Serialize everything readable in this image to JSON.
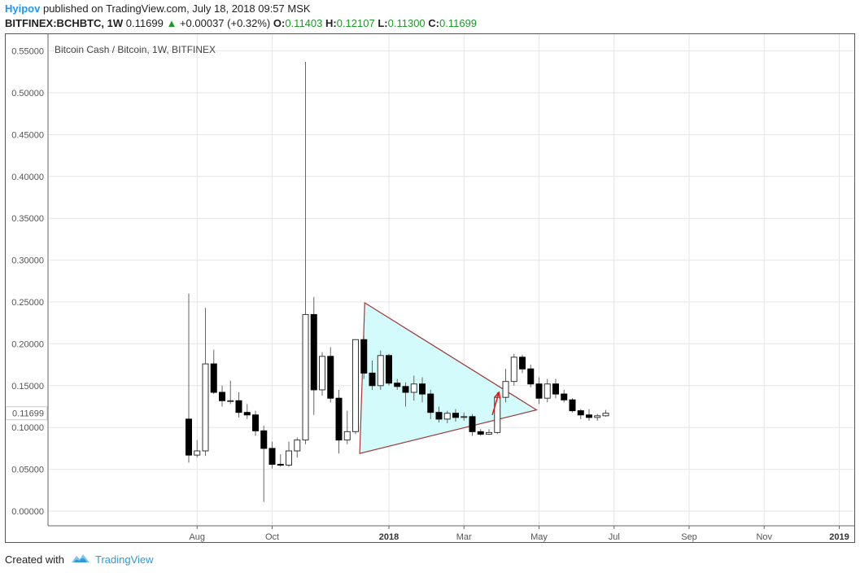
{
  "header": {
    "author": "Hyipov",
    "published_text": "published on TradingView.com, July 18, 2018 09:57 MSK",
    "symbol": "BITFINEX:BCHBTC, 1W",
    "last": "0.11699",
    "change": "+0.00037 (+0.32%)",
    "o_label": "O:",
    "o_val": "0.11403",
    "h_label": "H:",
    "h_val": "0.12107",
    "l_label": "L:",
    "l_val": "0.11300",
    "c_label": "C:",
    "c_val": "0.11699"
  },
  "chart_data": {
    "type": "candlestick",
    "title": "Bitcoin Cash / Bitcoin, 1W, BITFINEX",
    "ylim": [
      -0.02,
      0.56
    ],
    "yticks": [
      "0.55000",
      "0.50000",
      "0.45000",
      "0.40000",
      "0.35000",
      "0.30000",
      "0.25000",
      "0.20000",
      "0.15000",
      "0.10000",
      "0.05000",
      "0.00000"
    ],
    "ytick_values": [
      0.55,
      0.5,
      0.45,
      0.4,
      0.35,
      0.3,
      0.25,
      0.2,
      0.15,
      0.1,
      0.05,
      0.0
    ],
    "price_label": "0.11699",
    "price_value": 0.11699,
    "xticks": [
      {
        "label": "Aug",
        "bold": false,
        "week": 1
      },
      {
        "label": "Oct",
        "bold": false,
        "week": 10
      },
      {
        "label": "2018",
        "bold": true,
        "week": 24
      },
      {
        "label": "Mar",
        "bold": false,
        "week": 33
      },
      {
        "label": "May",
        "bold": false,
        "week": 42
      },
      {
        "label": "Jul",
        "bold": false,
        "week": 51
      },
      {
        "label": "Sep",
        "bold": false,
        "week": 60
      },
      {
        "label": "Nov",
        "bold": false,
        "week": 69
      },
      {
        "label": "2019",
        "bold": true,
        "week": 78
      }
    ],
    "candles": [
      {
        "o": 0.11,
        "h": 0.26,
        "l": 0.058,
        "c": 0.067
      },
      {
        "o": 0.067,
        "h": 0.085,
        "l": 0.064,
        "c": 0.072
      },
      {
        "o": 0.072,
        "h": 0.243,
        "l": 0.066,
        "c": 0.176
      },
      {
        "o": 0.176,
        "h": 0.193,
        "l": 0.14,
        "c": 0.142
      },
      {
        "o": 0.142,
        "h": 0.15,
        "l": 0.125,
        "c": 0.132
      },
      {
        "o": 0.132,
        "h": 0.156,
        "l": 0.128,
        "c": 0.132
      },
      {
        "o": 0.132,
        "h": 0.142,
        "l": 0.112,
        "c": 0.118
      },
      {
        "o": 0.118,
        "h": 0.128,
        "l": 0.11,
        "c": 0.115
      },
      {
        "o": 0.115,
        "h": 0.12,
        "l": 0.09,
        "c": 0.096
      },
      {
        "o": 0.096,
        "h": 0.102,
        "l": 0.011,
        "c": 0.075
      },
      {
        "o": 0.075,
        "h": 0.083,
        "l": 0.051,
        "c": 0.056
      },
      {
        "o": 0.056,
        "h": 0.068,
        "l": 0.053,
        "c": 0.055
      },
      {
        "o": 0.055,
        "h": 0.083,
        "l": 0.053,
        "c": 0.072
      },
      {
        "o": 0.072,
        "h": 0.088,
        "l": 0.064,
        "c": 0.085
      },
      {
        "o": 0.085,
        "h": 0.537,
        "l": 0.08,
        "c": 0.235
      },
      {
        "o": 0.235,
        "h": 0.256,
        "l": 0.115,
        "c": 0.145
      },
      {
        "o": 0.145,
        "h": 0.19,
        "l": 0.138,
        "c": 0.185
      },
      {
        "o": 0.185,
        "h": 0.196,
        "l": 0.13,
        "c": 0.135
      },
      {
        "o": 0.135,
        "h": 0.145,
        "l": 0.069,
        "c": 0.085
      },
      {
        "o": 0.085,
        "h": 0.12,
        "l": 0.08,
        "c": 0.095
      },
      {
        "o": 0.095,
        "h": 0.205,
        "l": 0.092,
        "c": 0.205
      },
      {
        "o": 0.205,
        "h": 0.21,
        "l": 0.158,
        "c": 0.165
      },
      {
        "o": 0.165,
        "h": 0.18,
        "l": 0.145,
        "c": 0.15
      },
      {
        "o": 0.15,
        "h": 0.192,
        "l": 0.145,
        "c": 0.186
      },
      {
        "o": 0.186,
        "h": 0.188,
        "l": 0.15,
        "c": 0.153
      },
      {
        "o": 0.153,
        "h": 0.158,
        "l": 0.145,
        "c": 0.149
      },
      {
        "o": 0.149,
        "h": 0.154,
        "l": 0.125,
        "c": 0.142
      },
      {
        "o": 0.142,
        "h": 0.162,
        "l": 0.132,
        "c": 0.152
      },
      {
        "o": 0.152,
        "h": 0.16,
        "l": 0.13,
        "c": 0.14
      },
      {
        "o": 0.14,
        "h": 0.145,
        "l": 0.11,
        "c": 0.118
      },
      {
        "o": 0.118,
        "h": 0.125,
        "l": 0.106,
        "c": 0.11
      },
      {
        "o": 0.11,
        "h": 0.12,
        "l": 0.105,
        "c": 0.117
      },
      {
        "o": 0.117,
        "h": 0.122,
        "l": 0.107,
        "c": 0.112
      },
      {
        "o": 0.112,
        "h": 0.118,
        "l": 0.108,
        "c": 0.113
      },
      {
        "o": 0.113,
        "h": 0.116,
        "l": 0.09,
        "c": 0.095
      },
      {
        "o": 0.095,
        "h": 0.098,
        "l": 0.09,
        "c": 0.092
      },
      {
        "o": 0.092,
        "h": 0.098,
        "l": 0.091,
        "c": 0.094
      },
      {
        "o": 0.094,
        "h": 0.142,
        "l": 0.092,
        "c": 0.136
      },
      {
        "o": 0.136,
        "h": 0.17,
        "l": 0.13,
        "c": 0.155
      },
      {
        "o": 0.155,
        "h": 0.188,
        "l": 0.15,
        "c": 0.184
      },
      {
        "o": 0.184,
        "h": 0.187,
        "l": 0.165,
        "c": 0.17
      },
      {
        "o": 0.17,
        "h": 0.175,
        "l": 0.148,
        "c": 0.152
      },
      {
        "o": 0.152,
        "h": 0.16,
        "l": 0.128,
        "c": 0.135
      },
      {
        "o": 0.135,
        "h": 0.158,
        "l": 0.13,
        "c": 0.152
      },
      {
        "o": 0.152,
        "h": 0.158,
        "l": 0.135,
        "c": 0.14
      },
      {
        "o": 0.14,
        "h": 0.145,
        "l": 0.13,
        "c": 0.133
      },
      {
        "o": 0.133,
        "h": 0.135,
        "l": 0.118,
        "c": 0.12
      },
      {
        "o": 0.12,
        "h": 0.122,
        "l": 0.11,
        "c": 0.115
      },
      {
        "o": 0.115,
        "h": 0.122,
        "l": 0.108,
        "c": 0.112
      },
      {
        "o": 0.112,
        "h": 0.116,
        "l": 0.108,
        "c": 0.114
      },
      {
        "o": 0.114,
        "h": 0.121,
        "l": 0.113,
        "c": 0.117
      }
    ],
    "triangle": {
      "points": [
        [
          21.1,
          0.249
        ],
        [
          20.5,
          0.069
        ],
        [
          41.7,
          0.121
        ]
      ],
      "fill": "#d4fbfb",
      "stroke": "#a23a3a"
    },
    "arrow": {
      "from": [
        36.4,
        0.115
      ],
      "to": [
        37.2,
        0.142
      ],
      "color": "#e11"
    },
    "colors": {
      "up": "#ffffff",
      "down": "#000000",
      "wick": "#666666",
      "grid": "#e6e6e6",
      "up_border": "#333"
    }
  },
  "footer": {
    "created_with": "Created with",
    "brand": "TradingView"
  }
}
